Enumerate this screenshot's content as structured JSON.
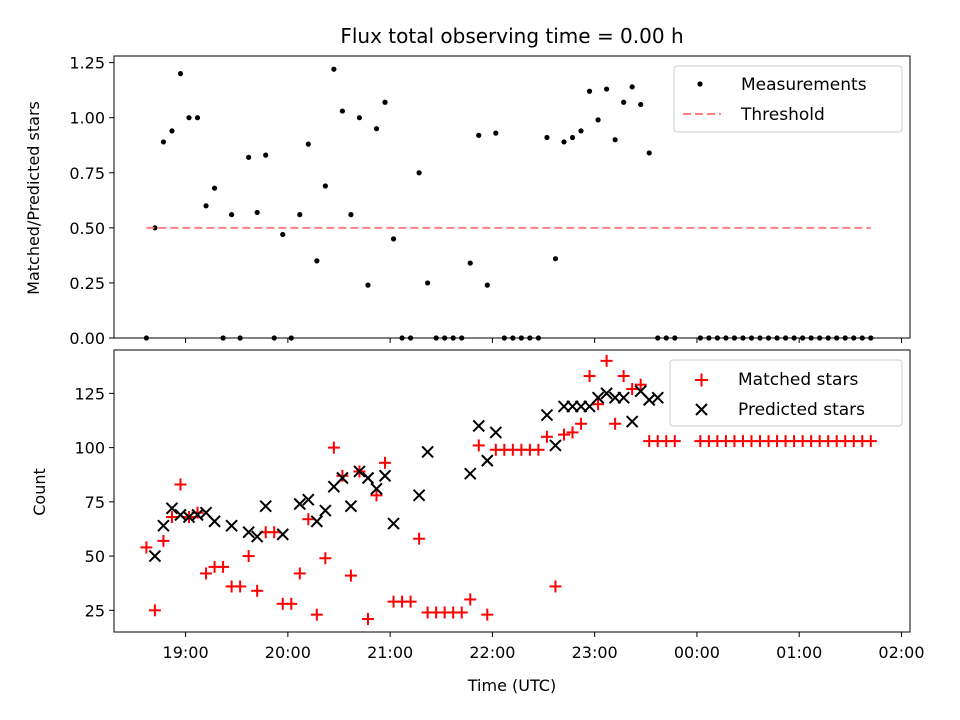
{
  "figure": {
    "title": "Flux total observing time = 0.00 h"
  },
  "chart_data": [
    {
      "type": "scatter",
      "ylabel": "Matched/Predicted stars",
      "xlabel": "",
      "ylim": [
        0,
        1.28
      ],
      "xlim": [
        "18:18",
        "02:05"
      ],
      "yticks": [
        0,
        0.25,
        0.5,
        0.75,
        1.0,
        1.25
      ],
      "ytick_labels": [
        "0.00",
        "0.25",
        "0.50",
        "0.75",
        "1.00",
        "1.25"
      ],
      "legend_position": "top-right",
      "series": [
        {
          "name": "Measurements",
          "marker": "dot",
          "color": "#000000",
          "x": [
            "18:37",
            "18:42",
            "18:47",
            "18:52",
            "18:57",
            "19:02",
            "19:07",
            "19:12",
            "19:17",
            "19:22",
            "19:27",
            "19:32",
            "19:37",
            "19:42",
            "19:47",
            "19:52",
            "19:57",
            "20:02",
            "20:07",
            "20:12",
            "20:17",
            "20:22",
            "20:27",
            "20:32",
            "20:37",
            "20:42",
            "20:47",
            "20:52",
            "20:57",
            "21:02",
            "21:07",
            "21:12",
            "21:17",
            "21:22",
            "21:27",
            "21:32",
            "21:37",
            "21:42",
            "21:47",
            "21:52",
            "21:57",
            "22:02",
            "22:07",
            "22:12",
            "22:17",
            "22:22",
            "22:27",
            "22:32",
            "22:37",
            "22:42",
            "22:47",
            "22:52",
            "22:57",
            "23:02",
            "23:07",
            "23:12",
            "23:17",
            "23:22",
            "23:27",
            "23:32",
            "23:37",
            "23:42",
            "23:47",
            "00:02",
            "00:07",
            "00:12",
            "00:17",
            "00:22",
            "00:27",
            "00:32",
            "00:37",
            "00:42",
            "00:47",
            "00:52",
            "00:57",
            "01:02",
            "01:07",
            "01:12",
            "01:17",
            "01:22",
            "01:27",
            "01:32",
            "01:37",
            "01:42"
          ],
          "y": [
            0.0,
            0.5,
            0.89,
            0.94,
            1.2,
            1.0,
            1.0,
            0.6,
            0.68,
            0.0,
            0.56,
            0.0,
            0.82,
            0.57,
            0.83,
            0.0,
            0.47,
            0.0,
            0.56,
            0.88,
            0.35,
            0.69,
            1.22,
            1.03,
            0.56,
            1.0,
            0.24,
            0.95,
            1.07,
            0.45,
            0.0,
            0.0,
            0.75,
            0.25,
            0.0,
            0.0,
            0.0,
            0.0,
            0.34,
            0.92,
            0.24,
            0.93,
            0.0,
            0.0,
            0.0,
            0.0,
            0.0,
            0.91,
            0.36,
            0.89,
            0.91,
            0.94,
            1.12,
            0.99,
            1.13,
            0.9,
            1.07,
            1.14,
            1.06,
            0.84,
            0.0,
            0.0,
            0.0,
            0.0,
            0.0,
            0.0,
            0.0,
            0.0,
            0.0,
            0.0,
            0.0,
            0.0,
            0.0,
            0.0,
            0.0,
            0.0,
            0.0,
            0.0,
            0.0,
            0.0,
            0.0,
            0.0,
            0.0,
            0.0
          ]
        },
        {
          "name": "Threshold",
          "marker": "dashed-line",
          "color": "#ff8080",
          "x": [
            "18:37",
            "01:42"
          ],
          "y": [
            0.5,
            0.5
          ]
        }
      ]
    },
    {
      "type": "scatter",
      "ylabel": "Count",
      "xlabel": "Time (UTC)",
      "ylim": [
        15,
        145
      ],
      "xlim": [
        "18:18",
        "02:05"
      ],
      "yticks": [
        25,
        50,
        75,
        100,
        125
      ],
      "ytick_labels": [
        "25",
        "50",
        "75",
        "100",
        "125"
      ],
      "xticks": [
        "19:00",
        "20:00",
        "21:00",
        "22:00",
        "23:00",
        "00:00",
        "01:00",
        "02:00"
      ],
      "legend_position": "top-right",
      "series": [
        {
          "name": "Matched stars",
          "marker": "plus",
          "color": "#ff0000",
          "x": [
            "18:37",
            "18:42",
            "18:47",
            "18:52",
            "18:57",
            "19:02",
            "19:07",
            "19:12",
            "19:17",
            "19:22",
            "19:27",
            "19:32",
            "19:37",
            "19:42",
            "19:47",
            "19:52",
            "19:57",
            "20:02",
            "20:07",
            "20:12",
            "20:17",
            "20:22",
            "20:27",
            "20:32",
            "20:37",
            "20:42",
            "20:47",
            "20:52",
            "20:57",
            "21:02",
            "21:07",
            "21:12",
            "21:17",
            "21:22",
            "21:27",
            "21:32",
            "21:37",
            "21:42",
            "21:47",
            "21:52",
            "21:57",
            "22:02",
            "22:07",
            "22:12",
            "22:17",
            "22:22",
            "22:27",
            "22:32",
            "22:37",
            "22:42",
            "22:47",
            "22:52",
            "22:57",
            "23:02",
            "23:07",
            "23:12",
            "23:17",
            "23:22",
            "23:27",
            "23:32",
            "23:37",
            "23:42",
            "23:47",
            "00:02",
            "00:07",
            "00:12",
            "00:17",
            "00:22",
            "00:27",
            "00:32",
            "00:37",
            "00:42",
            "00:47",
            "00:52",
            "00:57",
            "01:02",
            "01:07",
            "01:12",
            "01:17",
            "01:22",
            "01:27",
            "01:32",
            "01:37",
            "01:42"
          ],
          "y": [
            54,
            25,
            57,
            68,
            83,
            68,
            70,
            42,
            45,
            45,
            36,
            36,
            50,
            34,
            61,
            61,
            28,
            28,
            42,
            67,
            23,
            49,
            100,
            87,
            41,
            89,
            21,
            78,
            93,
            29,
            29,
            29,
            58,
            24,
            24,
            24,
            24,
            24,
            30,
            101,
            23,
            99,
            99,
            99,
            99,
            99,
            99,
            105,
            36,
            106,
            107,
            111,
            133,
            120,
            140,
            111,
            133,
            127,
            129,
            103,
            103,
            103,
            103,
            103,
            103,
            103,
            103,
            103,
            103,
            103,
            103,
            103,
            103,
            103,
            103,
            103,
            103,
            103,
            103,
            103,
            103,
            103,
            103,
            103
          ]
        },
        {
          "name": "Predicted stars",
          "marker": "x",
          "color": "#000000",
          "x": [
            "18:42",
            "18:47",
            "18:52",
            "18:57",
            "19:02",
            "19:07",
            "19:12",
            "19:17",
            "19:27",
            "19:37",
            "19:42",
            "19:47",
            "19:57",
            "20:07",
            "20:12",
            "20:17",
            "20:22",
            "20:27",
            "20:32",
            "20:37",
            "20:42",
            "20:47",
            "20:52",
            "20:57",
            "21:02",
            "21:17",
            "21:22",
            "21:47",
            "21:52",
            "21:57",
            "22:02",
            "22:32",
            "22:37",
            "22:42",
            "22:47",
            "22:52",
            "22:57",
            "23:02",
            "23:07",
            "23:12",
            "23:17",
            "23:22",
            "23:27",
            "23:32",
            "23:37"
          ],
          "y": [
            50,
            64,
            72,
            69,
            68,
            69,
            70,
            66,
            64,
            61,
            59,
            73,
            60,
            74,
            76,
            66,
            71,
            82,
            86,
            73,
            89,
            86,
            81,
            87,
            65,
            78,
            98,
            88,
            110,
            94,
            107,
            115,
            101,
            119,
            119,
            119,
            119,
            123,
            125,
            123,
            123,
            112,
            126,
            122,
            123
          ]
        }
      ]
    }
  ]
}
